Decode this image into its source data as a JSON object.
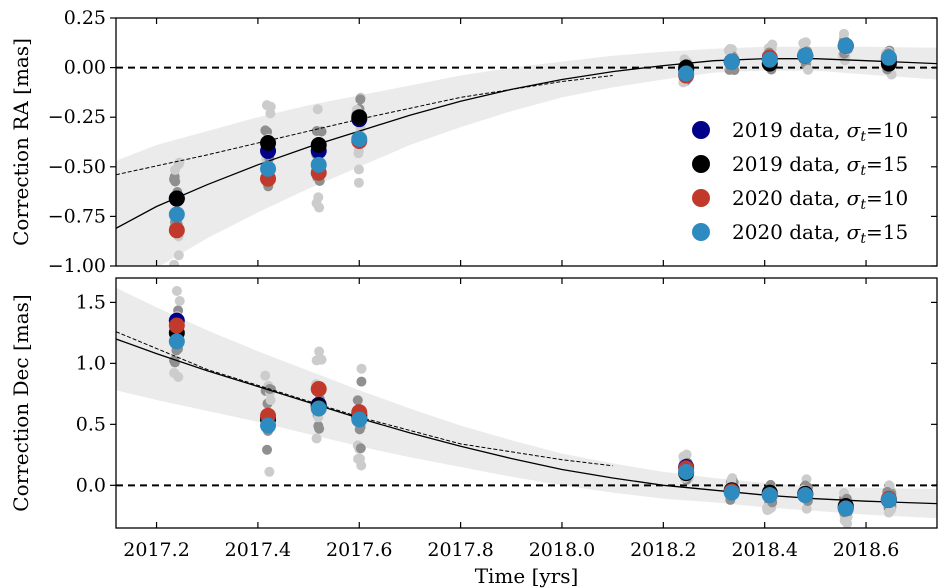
{
  "chart_data": {
    "type": "scatter",
    "xlabel": "Time [yrs]",
    "xlim": [
      2017.12,
      2018.74
    ],
    "xticks": [
      "2017.2",
      "2017.4",
      "2017.6",
      "2017.8",
      "2018.0",
      "2018.2",
      "2018.4",
      "2018.6"
    ],
    "legend": {
      "placement": "right",
      "entries": [
        {
          "label": "2019 data, σₜ=15",
          "color": "#000000"
        }
      ]
    },
    "legend_text": {
      "prefix": [
        "2019 data, ",
        "2019 data, ",
        "2020 data, ",
        "2020 data, "
      ],
      "sigma_value": [
        "=10",
        "=15",
        "=10",
        "=15"
      ],
      "colors": [
        "#00008b",
        "#000000",
        "#c0392b",
        "#2e8bc0"
      ]
    },
    "series_names": [
      "2019 data, σt=10",
      "2019 data, σt=15",
      "2020 data, σt=10",
      "2020 data, σt=15"
    ],
    "epochs": [
      2017.24,
      2017.42,
      2017.52,
      2017.6,
      2018.245,
      2018.335,
      2018.41,
      2018.48,
      2018.56,
      2018.645
    ],
    "panels": [
      {
        "ylabel": "Correction RA [mas]",
        "ylim": [
          -1.0,
          0.25
        ],
        "yticks": [
          "−1.00",
          "−0.75",
          "−0.50",
          "−0.25",
          "0.00",
          "0.25"
        ],
        "ytick_values": [
          -1.0,
          -0.75,
          -0.5,
          -0.25,
          0.0,
          0.25
        ],
        "zero_line": 0.0,
        "series": [
          {
            "values": [
              -0.66,
              -0.42,
              -0.42,
              -0.26,
              -0.01,
              0.03,
              0.04,
              0.06,
              0.11,
              0.04
            ]
          },
          {
            "values": [
              -0.66,
              -0.38,
              -0.39,
              -0.25,
              0.0,
              0.03,
              0.02,
              0.06,
              0.11,
              0.02
            ]
          },
          {
            "values": [
              -0.82,
              -0.56,
              -0.53,
              -0.37,
              -0.04,
              0.03,
              0.05,
              0.06,
              0.11,
              0.05
            ]
          },
          {
            "values": [
              -0.74,
              -0.51,
              -0.49,
              -0.36,
              -0.03,
              0.03,
              0.04,
              0.06,
              0.11,
              0.05
            ]
          }
        ],
        "model_curve": {
          "x": [
            2017.12,
            2017.2,
            2017.3,
            2017.4,
            2017.5,
            2017.6,
            2017.7,
            2017.8,
            2017.9,
            2018.0,
            2018.1,
            2018.2,
            2018.3,
            2018.4,
            2018.5,
            2018.6,
            2018.74
          ],
          "y": [
            -0.81,
            -0.7,
            -0.59,
            -0.49,
            -0.4,
            -0.32,
            -0.24,
            -0.17,
            -0.11,
            -0.06,
            -0.02,
            0.01,
            0.035,
            0.045,
            0.045,
            0.035,
            0.02
          ]
        },
        "dashed_curve": {
          "x": [
            2017.12,
            2017.3,
            2017.5,
            2017.6,
            2017.8,
            2018.0,
            2018.1
          ],
          "y": [
            -0.54,
            -0.44,
            -0.32,
            -0.26,
            -0.15,
            -0.07,
            -0.04
          ]
        },
        "band_halfwidth": [
          0.34,
          0.31,
          0.27,
          0.24,
          0.21,
          0.18,
          0.15,
          0.13,
          0.11,
          0.09,
          0.08,
          0.07,
          0.06,
          0.06,
          0.06,
          0.07,
          0.08
        ]
      },
      {
        "ylabel": "Correction Dec [mas]",
        "ylim": [
          -0.35,
          1.7
        ],
        "yticks": [
          "0.0",
          "0.5",
          "1.0",
          "1.5"
        ],
        "ytick_values": [
          0.0,
          0.5,
          1.0,
          1.5
        ],
        "zero_line": 0.0,
        "series": [
          {
            "values": [
              1.35,
              0.55,
              0.66,
              0.56,
              0.15,
              -0.05,
              -0.07,
              -0.07,
              -0.18,
              -0.12
            ]
          },
          {
            "values": [
              1.25,
              0.54,
              0.65,
              0.58,
              0.1,
              -0.04,
              -0.06,
              -0.07,
              -0.17,
              -0.12
            ]
          },
          {
            "values": [
              1.31,
              0.57,
              0.79,
              0.6,
              0.14,
              -0.05,
              -0.08,
              -0.08,
              -0.19,
              -0.11
            ]
          },
          {
            "values": [
              1.18,
              0.49,
              0.63,
              0.54,
              0.11,
              -0.06,
              -0.08,
              -0.08,
              -0.19,
              -0.12
            ]
          }
        ],
        "model_curve": {
          "x": [
            2017.12,
            2017.2,
            2017.3,
            2017.4,
            2017.5,
            2017.6,
            2017.7,
            2017.8,
            2017.9,
            2018.0,
            2018.1,
            2018.2,
            2018.3,
            2018.4,
            2018.5,
            2018.6,
            2018.74
          ],
          "y": [
            1.2,
            1.08,
            0.94,
            0.81,
            0.68,
            0.55,
            0.43,
            0.32,
            0.22,
            0.13,
            0.06,
            0.0,
            -0.04,
            -0.08,
            -0.11,
            -0.13,
            -0.15
          ]
        },
        "dashed_curve": {
          "x": [
            2017.12,
            2017.3,
            2017.5,
            2017.6,
            2017.8,
            2018.0,
            2018.1
          ],
          "y": [
            1.26,
            0.95,
            0.69,
            0.56,
            0.34,
            0.21,
            0.16
          ]
        },
        "band_halfwidth": [
          0.42,
          0.38,
          0.33,
          0.29,
          0.26,
          0.23,
          0.2,
          0.17,
          0.15,
          0.13,
          0.12,
          0.11,
          0.1,
          0.1,
          0.1,
          0.11,
          0.12
        ]
      }
    ]
  }
}
